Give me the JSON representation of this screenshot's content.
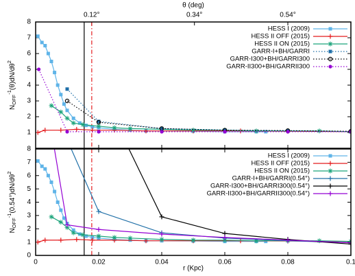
{
  "chart_data": [
    {
      "type": "line",
      "x2label": "θ (deg)",
      "ylabel": [
        "N",
        "OFF",
        "-1",
        "(θ)dN/dθ",
        "2"
      ],
      "xlim": [
        0,
        0.1
      ],
      "xticks": [
        0,
        0.02,
        0.04,
        0.06,
        0.08,
        0.1
      ],
      "x2lim": [
        0,
        0.675
      ],
      "x2ticks": [
        {
          "value": 0.12,
          "label": "0.12°"
        },
        {
          "value": 0.34,
          "label": "0.34°"
        },
        {
          "value": 0.54,
          "label": "0.54°"
        }
      ],
      "ylim": [
        0,
        8
      ],
      "yticks": [
        1,
        2,
        3,
        4,
        5,
        6,
        7,
        8
      ],
      "legend": "top-right",
      "vlines": [
        {
          "value": 0.0154,
          "color": "#000000",
          "dash": "solid"
        },
        {
          "value": 0.0178,
          "color": "#e41a1c",
          "dash": "dashdot"
        }
      ],
      "series": [
        {
          "name": "HESS I (2009)",
          "color": "#5fb4e8",
          "marker": "square-filled",
          "dash": "solid",
          "x": [
            0.0007,
            0.002,
            0.003,
            0.004,
            0.005,
            0.006,
            0.007,
            0.008,
            0.009,
            0.01,
            0.012,
            0.014,
            0.016,
            0.018,
            0.02,
            0.025,
            0.03,
            0.035,
            0.04,
            0.05,
            0.06,
            0.07,
            0.073
          ],
          "values": [
            7.1,
            6.7,
            6.5,
            6.0,
            5.5,
            4.8,
            4.0,
            3.4,
            2.8,
            2.4,
            1.9,
            1.6,
            1.45,
            1.35,
            1.3,
            1.2,
            1.15,
            1.1,
            1.1,
            1.08,
            1.05,
            1.05,
            1.05
          ]
        },
        {
          "name": "HESS II OFF (2015)",
          "color": "#e41a1c",
          "marker": "plus",
          "dash": "solid",
          "x": [
            0.0007,
            0.003,
            0.008,
            0.013,
            0.018,
            0.025,
            0.035,
            0.05,
            0.065,
            0.08,
            0.1
          ],
          "values": [
            1.0,
            1.15,
            1.15,
            1.2,
            1.15,
            1.15,
            1.1,
            1.1,
            1.1,
            1.08,
            1.05
          ]
        },
        {
          "name": "HESS II ON (2015)",
          "color": "#1aa37a",
          "marker": "star",
          "dash": "solid",
          "x": [
            0.005,
            0.008,
            0.01,
            0.012,
            0.015,
            0.02,
            0.025,
            0.03,
            0.04,
            0.05,
            0.06,
            0.07,
            0.08,
            0.09,
            0.1
          ],
          "values": [
            2.7,
            2.3,
            1.9,
            1.6,
            1.5,
            1.4,
            1.3,
            1.25,
            1.2,
            1.15,
            1.15,
            1.1,
            1.1,
            1.1,
            1.05
          ]
        },
        {
          "name": "GARR-I+BH/GARRI",
          "color": "#1f6fa8",
          "marker": "square-filled",
          "dash": "dotted",
          "x": [
            0.01,
            0.02,
            0.04,
            0.06,
            0.08,
            0.1
          ],
          "values": [
            3.75,
            1.7,
            1.25,
            1.15,
            1.1,
            1.05
          ]
        },
        {
          "name": "GARR-I300+BH/GARRI300",
          "color": "#000000",
          "marker": "circle-open",
          "dash": "dotted",
          "x": [
            0.01,
            0.02,
            0.04,
            0.06,
            0.08,
            0.1
          ],
          "values": [
            3.0,
            1.65,
            1.25,
            1.15,
            1.12,
            1.08
          ]
        },
        {
          "name": "GARR-II300+BH/GARRII300",
          "color": "#9400d3",
          "marker": "circle-filled",
          "dash": "dotted",
          "x": [
            0.001,
            0.01,
            0.02,
            0.04,
            0.06,
            0.08,
            0.1
          ],
          "values": [
            5.0,
            1.05,
            1.05,
            1.05,
            1.05,
            1.05,
            1.05
          ]
        }
      ]
    },
    {
      "type": "line",
      "xlabel": "r (Kpc)",
      "ylabel": [
        "N",
        "OFF",
        "-1",
        "(0.54°)dN/dθ",
        "2"
      ],
      "xlim": [
        0,
        0.1
      ],
      "xticks": [
        0,
        0.02,
        0.04,
        0.06,
        0.08,
        0.1
      ],
      "ylim": [
        0,
        8
      ],
      "yticks": [
        0,
        1,
        2,
        3,
        4,
        5,
        6,
        7,
        8
      ],
      "legend": "top-right",
      "vlines": [
        {
          "value": 0.0154,
          "color": "#000000",
          "dash": "solid"
        },
        {
          "value": 0.0178,
          "color": "#e41a1c",
          "dash": "dashdot"
        }
      ],
      "series": [
        {
          "name": "HESS I (2009)",
          "color": "#5fb4e8",
          "marker": "square-filled",
          "dash": "solid",
          "x": [
            0.0007,
            0.002,
            0.003,
            0.004,
            0.005,
            0.006,
            0.007,
            0.008,
            0.009,
            0.01,
            0.012,
            0.014,
            0.016,
            0.018,
            0.02,
            0.025,
            0.03,
            0.035,
            0.04,
            0.05,
            0.06,
            0.07,
            0.073
          ],
          "values": [
            7.1,
            6.7,
            6.5,
            6.0,
            5.5,
            4.8,
            4.0,
            3.4,
            2.8,
            2.4,
            1.9,
            1.6,
            1.45,
            1.35,
            1.3,
            1.2,
            1.15,
            1.1,
            1.1,
            1.08,
            1.05,
            1.05,
            1.05
          ]
        },
        {
          "name": "HESS II OFF (2015)",
          "color": "#e41a1c",
          "marker": "plus",
          "dash": "solid",
          "x": [
            0.0007,
            0.003,
            0.008,
            0.013,
            0.018,
            0.025,
            0.035,
            0.05,
            0.065,
            0.08,
            0.1
          ],
          "values": [
            1.0,
            1.15,
            1.15,
            1.2,
            1.15,
            1.15,
            1.1,
            1.1,
            1.1,
            1.08,
            1.05
          ]
        },
        {
          "name": "HESS II ON (2015)",
          "color": "#1aa37a",
          "marker": "star",
          "dash": "solid",
          "x": [
            0.005,
            0.008,
            0.01,
            0.012,
            0.015,
            0.02,
            0.025,
            0.03,
            0.04,
            0.05,
            0.06,
            0.07,
            0.08,
            0.09,
            0.1
          ],
          "values": [
            2.9,
            2.5,
            2.1,
            1.7,
            1.55,
            1.45,
            1.35,
            1.3,
            1.2,
            1.15,
            1.15,
            1.1,
            1.1,
            1.1,
            1.05
          ]
        },
        {
          "name": "GARR-I+BH/GARRI(0.54°)",
          "color": "#2070a8",
          "marker": "plus",
          "dash": "solid",
          "x": [
            0.01,
            0.02,
            0.04,
            0.06,
            0.08,
            0.1
          ],
          "values": [
            8.7,
            3.3,
            1.7,
            1.3,
            1.1,
            0.95
          ]
        },
        {
          "name": "GARR-I300+BH/GARRI300(0.54°)",
          "color": "#000000",
          "marker": "plus",
          "dash": "solid",
          "x": [
            0.02,
            0.04,
            0.06,
            0.08,
            0.1
          ],
          "values": [
            12.7,
            2.9,
            1.65,
            1.2,
            0.85
          ]
        },
        {
          "name": "GARR-II300+BH/GARRII300(0.54°)",
          "color": "#9400d3",
          "marker": "plus",
          "dash": "solid",
          "x": [
            0.001,
            0.01,
            0.02,
            0.04,
            0.06,
            0.08,
            0.1
          ],
          "values": [
            15.0,
            2.3,
            1.95,
            1.6,
            1.35,
            1.15,
            0.95
          ]
        }
      ]
    }
  ]
}
